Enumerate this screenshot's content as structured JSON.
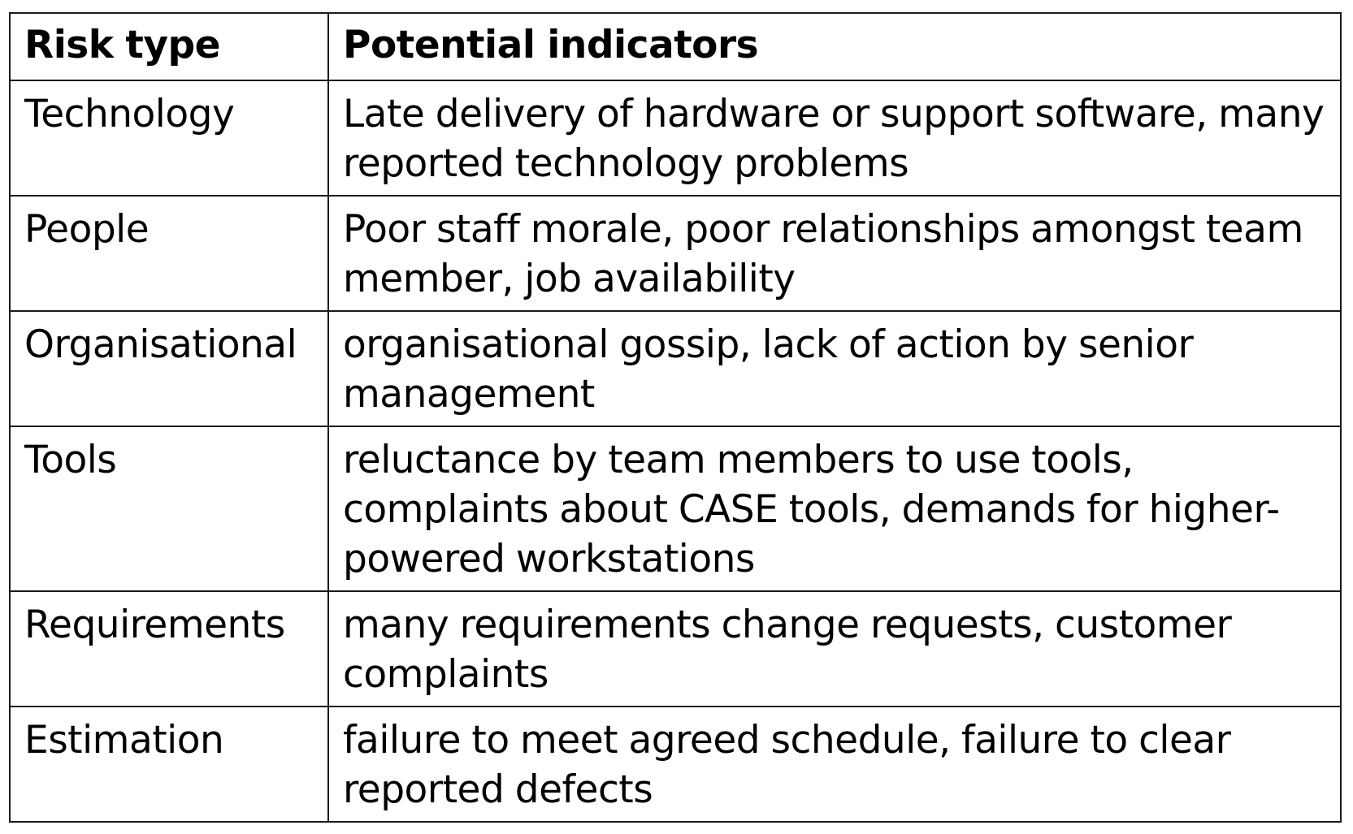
{
  "table": {
    "headers": {
      "risk_type": "Risk type",
      "potential_indicators": "Potential indicators"
    },
    "rows": [
      {
        "risk_type": "Technology",
        "indicators": "Late delivery of hardware or support software, many reported technology problems"
      },
      {
        "risk_type": "People",
        "indicators": "Poor staff morale, poor relationships amongst team member, job availability"
      },
      {
        "risk_type": "Organisational",
        "indicators": "organisational gossip, lack of action by senior management"
      },
      {
        "risk_type": "Tools",
        "indicators": "reluctance by team members to use tools, complaints about CASE tools, demands for higher-powered workstations"
      },
      {
        "risk_type": "Requirements",
        "indicators": "many requirements change requests, customer complaints"
      },
      {
        "risk_type": "Estimation",
        "indicators": "failure to meet agreed schedule, failure to clear reported defects"
      }
    ]
  }
}
